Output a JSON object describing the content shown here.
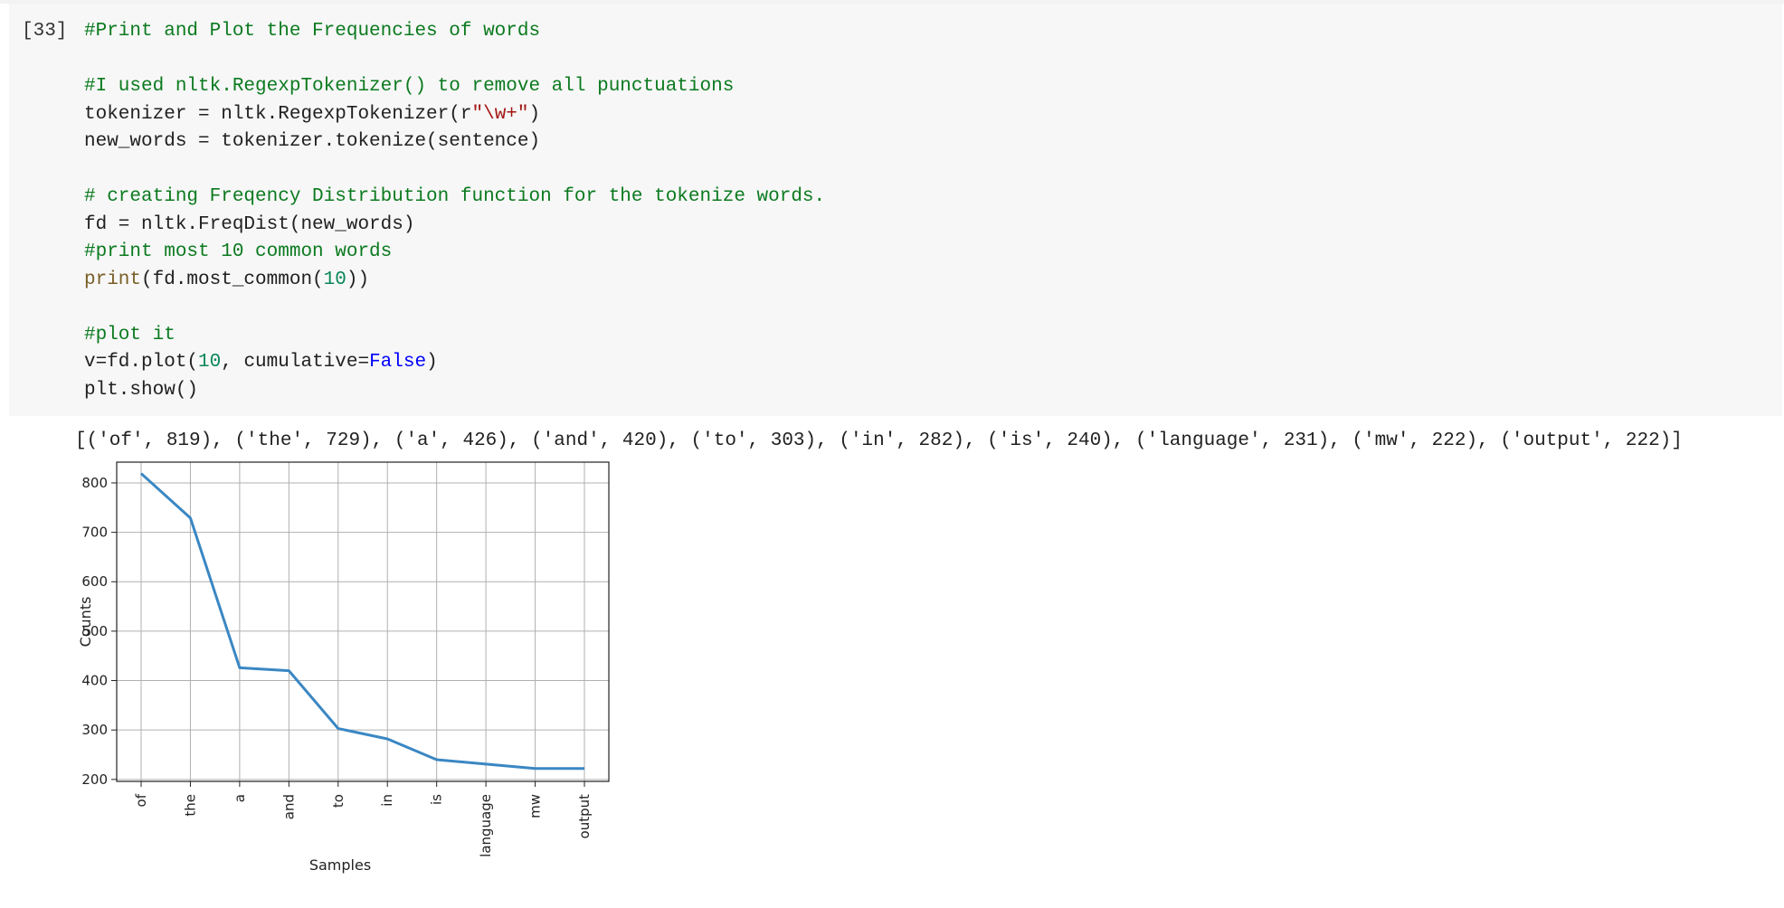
{
  "cell": {
    "execution_count": "[33]",
    "code_lines": [
      [
        {
          "t": "#Print and Plot the Frequencies of words",
          "c": "comment"
        }
      ],
      [],
      [
        {
          "t": "#I used nltk.RegexpTokenizer() to remove all punctuations",
          "c": "comment"
        }
      ],
      [
        {
          "t": "tokenizer = nltk.RegexpTokenizer(r",
          "c": "plain"
        },
        {
          "t": "\"\\w+\"",
          "c": "string"
        },
        {
          "t": ")",
          "c": "plain"
        }
      ],
      [
        {
          "t": "new_words = tokenizer.tokenize(sentence)",
          "c": "plain"
        }
      ],
      [],
      [
        {
          "t": "# creating Freqency Distribution function for the tokenize words.",
          "c": "comment"
        }
      ],
      [
        {
          "t": "fd = nltk.FreqDist(new_words)",
          "c": "plain"
        }
      ],
      [
        {
          "t": "#print most 10 common words",
          "c": "comment"
        }
      ],
      [
        {
          "t": "print",
          "c": "builtin"
        },
        {
          "t": "(fd.most_common(",
          "c": "plain"
        },
        {
          "t": "10",
          "c": "number"
        },
        {
          "t": "))",
          "c": "plain"
        }
      ],
      [],
      [
        {
          "t": "#plot it",
          "c": "comment"
        }
      ],
      [
        {
          "t": "v=fd.plot(",
          "c": "plain"
        },
        {
          "t": "10",
          "c": "number"
        },
        {
          "t": ", cumulative=",
          "c": "plain"
        },
        {
          "t": "False",
          "c": "keyword"
        },
        {
          "t": ")",
          "c": "plain"
        }
      ],
      [
        {
          "t": "plt.show()",
          "c": "plain"
        }
      ]
    ]
  },
  "output": {
    "text": "[('of', 819), ('the', 729), ('a', 426), ('and', 420), ('to', 303), ('in', 282), ('is', 240), ('language', 231), ('mw', 222), ('output', 222)]"
  },
  "chart_data": {
    "type": "line",
    "categories": [
      "of",
      "the",
      "a",
      "and",
      "to",
      "in",
      "is",
      "language",
      "mw",
      "output"
    ],
    "values": [
      819,
      729,
      426,
      420,
      303,
      282,
      240,
      231,
      222,
      222
    ],
    "xlabel": "Samples",
    "ylabel": "Counts",
    "ylim": [
      196,
      842
    ],
    "yticks": [
      200,
      300,
      400,
      500,
      600,
      700,
      800
    ],
    "grid": true,
    "line_color": "#3a87c3",
    "grid_color": "#b0b0b0"
  }
}
